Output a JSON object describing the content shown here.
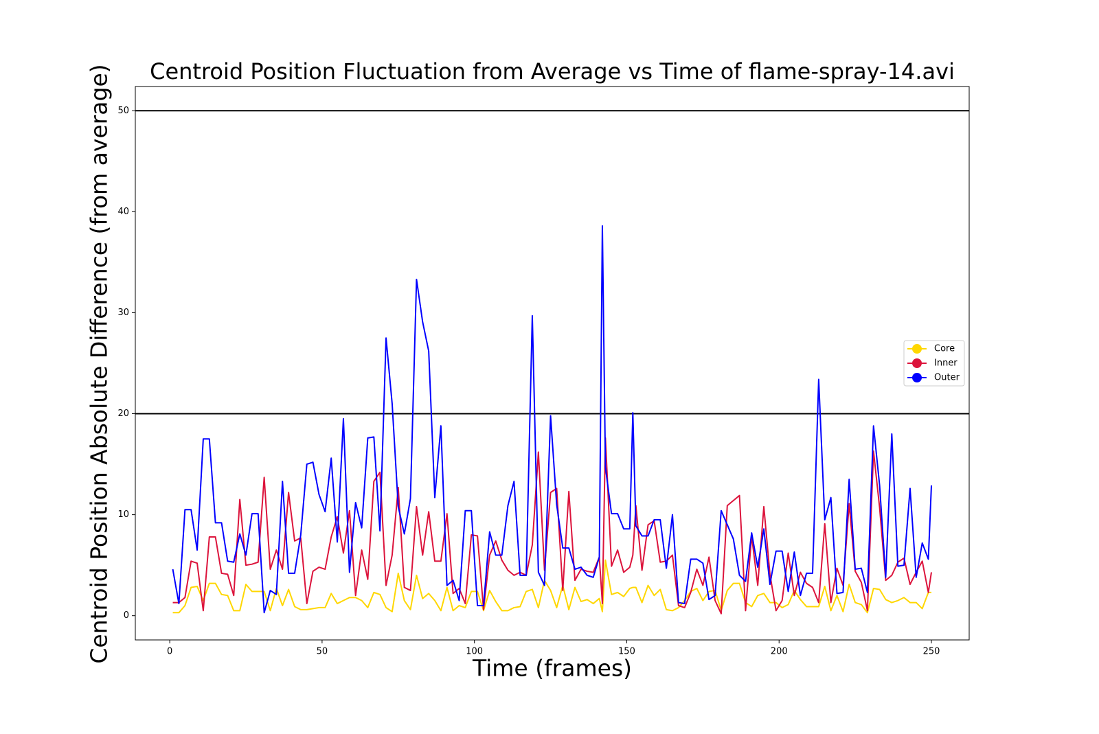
{
  "chart_data": {
    "type": "line",
    "title": "Centroid Position Fluctuation from Average vs Time of flame-spray-14.avi",
    "x_label": "Time (frames)",
    "y_label": "Centroid Position Absolute Difference (from average)",
    "xlim": [
      -11.3,
      262.4
    ],
    "ylim": [
      -2.4,
      52.4
    ],
    "xticks": [
      0,
      50,
      100,
      150,
      200,
      250
    ],
    "yticks": [
      0,
      10,
      20,
      30,
      40,
      50
    ],
    "hlines": [
      20,
      50
    ],
    "hline_color": "#000000",
    "legend": "center right",
    "x": [
      1,
      3,
      5,
      7,
      9,
      11,
      13,
      15,
      17,
      19,
      21,
      23,
      25,
      27,
      29,
      31,
      33,
      35,
      37,
      39,
      41,
      43,
      45,
      47,
      49,
      51,
      53,
      55,
      57,
      59,
      61,
      63,
      65,
      67,
      69,
      71,
      73,
      75,
      77,
      79,
      81,
      83,
      85,
      87,
      89,
      91,
      93,
      95,
      97,
      99,
      101,
      103,
      105,
      107,
      109,
      111,
      113,
      115,
      117,
      119,
      121,
      123,
      125,
      127,
      129,
      131,
      133,
      135,
      137,
      139,
      141,
      142,
      143,
      145,
      147,
      149,
      151,
      152,
      153,
      155,
      157,
      159,
      161,
      163,
      165,
      167,
      169,
      171,
      173,
      175,
      177,
      179,
      181,
      183,
      185,
      187,
      189,
      191,
      193,
      195,
      197,
      199,
      201,
      203,
      205,
      207,
      209,
      211,
      213,
      215,
      217,
      219,
      221,
      223,
      225,
      227,
      229,
      231,
      233,
      235,
      237,
      239,
      241,
      243,
      245,
      247,
      249,
      250
    ],
    "series": [
      {
        "name": "Core",
        "color": "#ffd700",
        "values": [
          0.3,
          0.3,
          1.0,
          2.8,
          2.9,
          1.5,
          3.2,
          3.2,
          2.1,
          2.0,
          0.5,
          0.5,
          3.1,
          2.4,
          2.4,
          2.4,
          0.5,
          2.7,
          1.0,
          2.6,
          0.9,
          0.6,
          0.6,
          0.7,
          0.8,
          0.8,
          2.2,
          1.2,
          1.5,
          1.8,
          1.8,
          1.5,
          0.8,
          2.3,
          2.1,
          0.8,
          0.4,
          4.2,
          1.5,
          0.6,
          4.0,
          1.7,
          2.2,
          1.5,
          0.5,
          2.8,
          0.5,
          1.0,
          0.8,
          2.4,
          2.4,
          0.5,
          2.5,
          1.4,
          0.5,
          0.5,
          0.8,
          0.9,
          2.4,
          2.6,
          0.8,
          3.5,
          2.5,
          0.8,
          3.0,
          0.6,
          2.8,
          1.4,
          1.6,
          1.2,
          1.7,
          0.4,
          5.5,
          2.1,
          2.3,
          1.9,
          2.7,
          2.8,
          2.8,
          1.3,
          3.0,
          2.0,
          2.6,
          0.6,
          0.5,
          0.8,
          1.5,
          2.4,
          2.7,
          1.5,
          2.4,
          2.5,
          0.5,
          2.5,
          3.2,
          3.2,
          1.3,
          0.9,
          2.0,
          2.2,
          1.3,
          1.3,
          0.8,
          1.1,
          2.5,
          1.6,
          0.9,
          0.9,
          0.9,
          2.9,
          0.5,
          2.0,
          0.4,
          3.1,
          1.3,
          1.1,
          0.3,
          2.7,
          2.6,
          1.6,
          1.3,
          1.5,
          1.8,
          1.3,
          1.3,
          0.7,
          2.3,
          2.3
        ]
      },
      {
        "name": "Inner",
        "color": "#dc143c",
        "values": [
          1.3,
          1.3,
          1.8,
          5.4,
          5.2,
          0.5,
          7.8,
          7.8,
          4.2,
          4.1,
          2.0,
          11.5,
          5.0,
          5.1,
          5.3,
          13.7,
          4.6,
          6.5,
          4.6,
          12.2,
          7.4,
          7.7,
          1.2,
          4.4,
          4.8,
          4.6,
          7.8,
          9.8,
          6.2,
          10.4,
          2.0,
          6.5,
          3.6,
          13.3,
          14.2,
          3.0,
          6.0,
          12.7,
          2.8,
          2.5,
          10.8,
          6.0,
          10.3,
          5.4,
          5.4,
          10.1,
          2.2,
          2.7,
          1.2,
          8.0,
          7.9,
          0.6,
          6.0,
          7.4,
          5.5,
          4.5,
          4.0,
          4.3,
          4.0,
          7.0,
          16.2,
          4.5,
          12.2,
          12.6,
          2.5,
          12.3,
          3.5,
          4.6,
          4.4,
          4.3,
          5.8,
          1.2,
          17.6,
          4.9,
          6.5,
          4.3,
          4.8,
          6.0,
          10.9,
          4.5,
          9.0,
          9.4,
          5.3,
          5.4,
          6.0,
          1.0,
          0.8,
          2.3,
          4.6,
          3.0,
          5.8,
          1.5,
          0.2,
          10.9,
          11.4,
          11.9,
          0.5,
          7.9,
          3.0,
          10.8,
          4.1,
          0.5,
          1.5,
          6.2,
          2.0,
          4.3,
          3.2,
          2.8,
          1.3,
          9.1,
          1.3,
          4.7,
          3.0,
          11.1,
          4.4,
          3.3,
          0.5,
          16.3,
          10.7,
          3.5,
          4.0,
          5.3,
          5.7,
          3.1,
          4.3,
          5.4,
          2.3,
          4.3
        ]
      },
      {
        "name": "Outer",
        "color": "#0000ff",
        "values": [
          4.6,
          1.2,
          10.5,
          10.5,
          6.5,
          17.5,
          17.5,
          9.2,
          9.2,
          5.4,
          5.3,
          8.1,
          6.0,
          10.1,
          10.1,
          0.3,
          2.5,
          2.1,
          13.3,
          4.2,
          4.2,
          8.0,
          15.0,
          15.2,
          12.0,
          10.3,
          15.6,
          7.3,
          19.5,
          4.3,
          11.2,
          8.7,
          17.6,
          17.7,
          8.4,
          27.5,
          21.0,
          10.8,
          8.1,
          11.6,
          33.3,
          29.1,
          26.2,
          11.7,
          18.8,
          3.0,
          3.5,
          1.5,
          10.4,
          10.4,
          1.0,
          1.0,
          8.3,
          6.0,
          6.0,
          10.9,
          13.3,
          4.0,
          4.0,
          29.7,
          4.3,
          3.0,
          19.8,
          11.0,
          6.7,
          6.7,
          4.6,
          4.8,
          4.0,
          3.8,
          5.8,
          38.6,
          14.7,
          10.1,
          10.1,
          8.6,
          8.6,
          20.1,
          8.9,
          7.9,
          7.9,
          9.5,
          9.5,
          4.7,
          10.0,
          1.3,
          1.2,
          5.6,
          5.6,
          5.2,
          1.6,
          2.0,
          10.4,
          9.0,
          7.6,
          4.0,
          3.4,
          8.2,
          4.8,
          8.6,
          3.1,
          6.4,
          6.4,
          2.4,
          6.3,
          2.0,
          4.2,
          4.2,
          23.4,
          9.5,
          11.7,
          2.2,
          2.3,
          13.5,
          4.6,
          4.7,
          2.3,
          18.8,
          12.9,
          3.8,
          18.0,
          4.9,
          5.0,
          12.6,
          3.8,
          7.2,
          5.6,
          12.9
        ]
      }
    ]
  }
}
